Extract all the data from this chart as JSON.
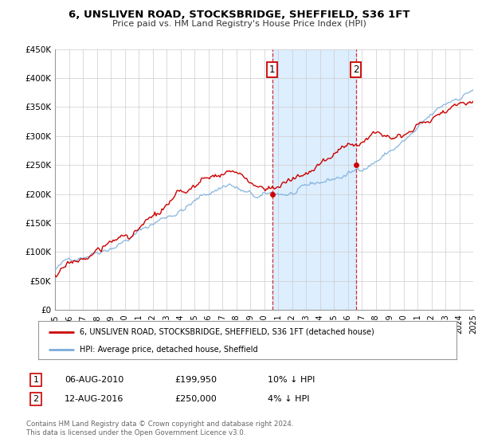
{
  "title": "6, UNSLIVEN ROAD, STOCKSBRIDGE, SHEFFIELD, S36 1FT",
  "subtitle": "Price paid vs. HM Land Registry's House Price Index (HPI)",
  "legend_label_red": "6, UNSLIVEN ROAD, STOCKSBRIDGE, SHEFFIELD, S36 1FT (detached house)",
  "legend_label_blue": "HPI: Average price, detached house, Sheffield",
  "annotation1_label": "1",
  "annotation1_date": "06-AUG-2010",
  "annotation1_price": "£199,950",
  "annotation1_hpi": "10% ↓ HPI",
  "annotation2_label": "2",
  "annotation2_date": "12-AUG-2016",
  "annotation2_price": "£250,000",
  "annotation2_hpi": "4% ↓ HPI",
  "footer": "Contains HM Land Registry data © Crown copyright and database right 2024.\nThis data is licensed under the Open Government Licence v3.0.",
  "red_color": "#cc0000",
  "blue_color": "#7aaddb",
  "shaded_color": "#ddeeff",
  "point1_x": 2010.58,
  "point1_y": 199950,
  "point2_x": 2016.58,
  "point2_y": 250000,
  "vline1_x": 2010.58,
  "vline2_x": 2016.58,
  "ylim": [
    0,
    450000
  ],
  "xlim": [
    1995,
    2025
  ],
  "yticks": [
    0,
    50000,
    100000,
    150000,
    200000,
    250000,
    300000,
    350000,
    400000,
    450000
  ],
  "ytick_labels": [
    "£0",
    "£50K",
    "£100K",
    "£150K",
    "£200K",
    "£250K",
    "£300K",
    "£350K",
    "£400K",
    "£450K"
  ],
  "xticks": [
    1995,
    1996,
    1997,
    1998,
    1999,
    2000,
    2001,
    2002,
    2003,
    2004,
    2005,
    2006,
    2007,
    2008,
    2009,
    2010,
    2011,
    2012,
    2013,
    2014,
    2015,
    2016,
    2017,
    2018,
    2019,
    2020,
    2021,
    2022,
    2023,
    2024,
    2025
  ]
}
